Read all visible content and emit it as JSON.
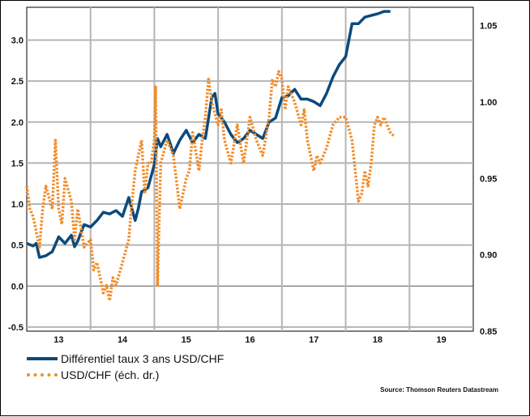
{
  "chart_data": {
    "type": "line",
    "title": "",
    "xlabel": "",
    "x_ticks": [
      "13",
      "14",
      "15",
      "16",
      "17",
      "18",
      "19"
    ],
    "y_left": {
      "ticks": [
        "3.0",
        "2.5",
        "2.0",
        "1.5",
        "1.0",
        "0.5",
        "0.0",
        "-0.5"
      ],
      "ylim": [
        -0.55,
        3.4
      ]
    },
    "y_right": {
      "ticks": [
        "1.05",
        "1.00",
        "0.95",
        "0.90",
        "0.85"
      ],
      "ylim": [
        0.85,
        1.062
      ]
    },
    "xlim": [
      2012.5,
      2019.5
    ],
    "grid": true,
    "legend": "bottom-left",
    "series": [
      {
        "name": "Différentiel taux 3 ans USD/CHF",
        "axis": "left",
        "color": "#0b4a7d",
        "style": "solid",
        "x": [
          2012.5,
          2012.6,
          2012.65,
          2012.7,
          2012.8,
          2012.9,
          2013.0,
          2013.1,
          2013.2,
          2013.25,
          2013.3,
          2013.4,
          2013.5,
          2013.6,
          2013.7,
          2013.8,
          2013.9,
          2014.0,
          2014.1,
          2014.2,
          2014.25,
          2014.3,
          2014.4,
          2014.5,
          2014.55,
          2014.6,
          2014.7,
          2014.8,
          2014.9,
          2015.0,
          2015.1,
          2015.2,
          2015.3,
          2015.4,
          2015.45,
          2015.5,
          2015.6,
          2015.7,
          2015.8,
          2015.9,
          2016.0,
          2016.1,
          2016.2,
          2016.3,
          2016.4,
          2016.5,
          2016.6,
          2016.7,
          2016.8,
          2016.9,
          2017.0,
          2017.1,
          2017.2,
          2017.3,
          2017.4,
          2017.5,
          2017.6,
          2017.7,
          2017.8,
          2017.9,
          2018.0,
          2018.1,
          2018.2
        ],
        "y": [
          0.52,
          0.49,
          0.52,
          0.35,
          0.37,
          0.42,
          0.6,
          0.52,
          0.62,
          0.48,
          0.55,
          0.75,
          0.72,
          0.8,
          0.9,
          0.88,
          0.92,
          0.85,
          1.08,
          0.8,
          0.95,
          1.15,
          1.2,
          1.48,
          1.8,
          1.7,
          1.85,
          1.62,
          1.78,
          1.9,
          1.75,
          1.85,
          1.8,
          2.3,
          2.35,
          2.1,
          2.0,
          1.85,
          1.75,
          1.8,
          1.9,
          1.85,
          1.8,
          2.0,
          2.05,
          2.3,
          2.32,
          2.4,
          2.28,
          2.28,
          2.25,
          2.2,
          2.35,
          2.55,
          2.7,
          2.8,
          3.2,
          3.2,
          3.28,
          3.3,
          3.32,
          3.35,
          3.35
        ]
      },
      {
        "name": "USD/CHF (éch. dr.)",
        "axis": "right",
        "color": "#f28c28",
        "style": "dotted",
        "x": [
          2012.5,
          2012.55,
          2012.6,
          2012.7,
          2012.75,
          2012.8,
          2012.9,
          2012.95,
          2013.0,
          2013.05,
          2013.1,
          2013.2,
          2013.25,
          2013.3,
          2013.4,
          2013.5,
          2013.55,
          2013.6,
          2013.7,
          2013.75,
          2013.8,
          2013.85,
          2013.9,
          2014.0,
          2014.1,
          2014.15,
          2014.2,
          2014.3,
          2014.35,
          2014.4,
          2014.45,
          2014.5,
          2014.52,
          2014.55,
          2014.6,
          2014.7,
          2014.8,
          2014.9,
          2015.0,
          2015.05,
          2015.1,
          2015.2,
          2015.25,
          2015.3,
          2015.35,
          2015.4,
          2015.5,
          2015.55,
          2015.6,
          2015.7,
          2015.8,
          2015.9,
          2016.0,
          2016.1,
          2016.2,
          2016.3,
          2016.35,
          2016.4,
          2016.45,
          2016.5,
          2016.55,
          2016.6,
          2016.7,
          2016.8,
          2016.85,
          2016.9,
          2017.0,
          2017.05,
          2017.1,
          2017.2,
          2017.3,
          2017.4,
          2017.5,
          2017.6,
          2017.7,
          2017.75,
          2017.8,
          2017.85,
          2017.9,
          2017.95,
          2018.0,
          2018.05,
          2018.1,
          2018.15,
          2018.2,
          2018.25
        ],
        "y": [
          0.945,
          0.93,
          0.925,
          0.905,
          0.93,
          0.945,
          0.93,
          0.975,
          0.93,
          0.92,
          0.95,
          0.935,
          0.91,
          0.93,
          0.905,
          0.91,
          0.89,
          0.895,
          0.875,
          0.88,
          0.87,
          0.885,
          0.88,
          0.895,
          0.91,
          0.935,
          0.955,
          0.975,
          0.94,
          0.96,
          0.96,
          0.975,
          1.01,
          0.88,
          0.96,
          0.975,
          0.965,
          0.93,
          0.95,
          0.955,
          0.98,
          0.955,
          0.975,
          0.99,
          1.015,
          1.0,
          0.985,
          0.995,
          0.975,
          0.96,
          0.985,
          0.96,
          0.99,
          0.975,
          0.965,
          0.99,
          1.015,
          1.01,
          1.02,
          1.015,
          0.995,
          1.01,
          1.0,
          0.985,
          0.995,
          0.975,
          0.955,
          0.965,
          0.96,
          0.97,
          0.985,
          0.99,
          0.99,
          0.975,
          0.935,
          0.94,
          0.955,
          0.945,
          0.96,
          0.985,
          0.99,
          0.985,
          0.99,
          0.985,
          0.98,
          0.978
        ]
      }
    ]
  },
  "source": "Source: Thomson Reuters Datastream"
}
